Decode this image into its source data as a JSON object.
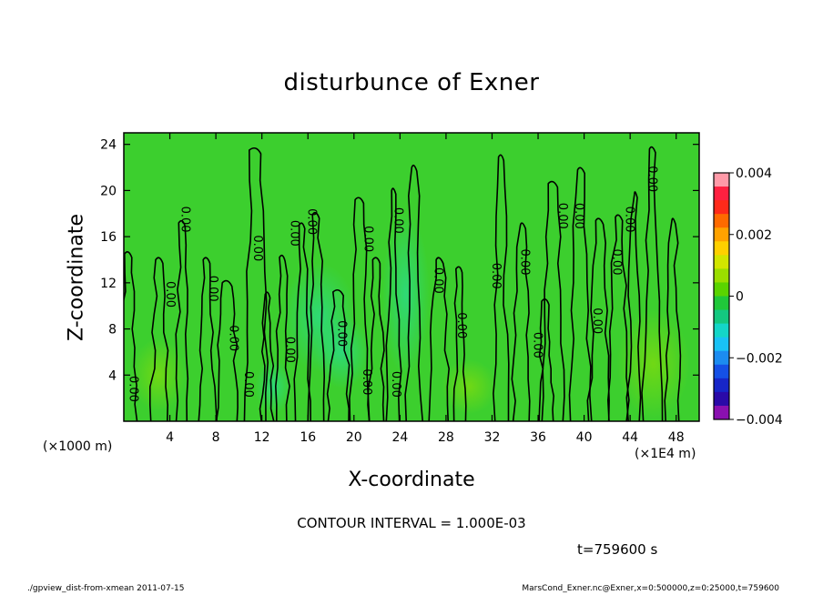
{
  "figure": {
    "title": "disturbunce of Exner",
    "x_unit_left": "(×1000 m)",
    "x_unit_right": "(×1E4 m)",
    "contour_interval": "CONTOUR INTERVAL = 1.000E-03",
    "timestamp": "t=759600 s",
    "footer_left": "./gpview_dist-from-xmean  2011-07-15",
    "footer_right": "MarsCond_Exner.nc@Exner,x=0:500000,z=0:25000,t=759600"
  },
  "chart_data": {
    "type": "heatmap",
    "title": "disturbunce of Exner",
    "xlabel": "X-coordinate",
    "ylabel": "Z-coordinate",
    "xlim": [
      0,
      50
    ],
    "ylim": [
      0,
      25
    ],
    "x_ticks": [
      4,
      8,
      12,
      16,
      20,
      24,
      28,
      32,
      36,
      40,
      44,
      48
    ],
    "y_ticks": [
      4,
      8,
      12,
      16,
      20,
      24
    ],
    "grid": false,
    "background_color": "#3ccf2e",
    "colorbar": {
      "min": -0.004,
      "max": 0.004,
      "tick_labels": [
        "0.004",
        "0.002",
        "0",
        "−0.002",
        "−0.004"
      ],
      "tick_values": [
        0.004,
        0.002,
        0,
        -0.002,
        -0.004
      ],
      "colors": [
        "#ff9aa8",
        "#ff2040",
        "#ff2a1a",
        "#ff6a00",
        "#ffa200",
        "#ffd000",
        "#d2e600",
        "#9bde00",
        "#5ad400",
        "#20c83a",
        "#14c880",
        "#14d6c8",
        "#19c2f5",
        "#1c8cf0",
        "#1550e6",
        "#1726c8",
        "#2a0aa8",
        "#8a10b0"
      ]
    },
    "contour_label": "0.00",
    "contour_label_positions": [
      [
        0.8,
        2.8
      ],
      [
        4,
        11
      ],
      [
        5.3,
        17.5
      ],
      [
        7.7,
        11.5
      ],
      [
        9.5,
        7.2
      ],
      [
        10.8,
        3.2
      ],
      [
        11.6,
        15
      ],
      [
        14.4,
        6.2
      ],
      [
        14.8,
        16.3
      ],
      [
        16.3,
        17.3
      ],
      [
        18.9,
        7.6
      ],
      [
        21.1,
        3.4
      ],
      [
        21.2,
        15.8
      ],
      [
        23.8,
        17.4
      ],
      [
        23.6,
        3.2
      ],
      [
        27.3,
        12.2
      ],
      [
        29.3,
        8.3
      ],
      [
        32.3,
        12.6
      ],
      [
        34.8,
        13.8
      ],
      [
        35.9,
        6.6
      ],
      [
        38.1,
        17.8
      ],
      [
        39.5,
        17.8
      ],
      [
        41.1,
        8.7
      ],
      [
        42.8,
        13.8
      ],
      [
        43.9,
        17.5
      ],
      [
        45.9,
        21
      ]
    ],
    "contour_peaks_top": [
      [
        0.4,
        14.5
      ],
      [
        3.1,
        14
      ],
      [
        5.1,
        17.2
      ],
      [
        7.2,
        14
      ],
      [
        9,
        12
      ],
      [
        11.5,
        23.5
      ],
      [
        12.5,
        11
      ],
      [
        13.8,
        14.2
      ],
      [
        15.5,
        17
      ],
      [
        16.7,
        17.9
      ],
      [
        18.7,
        11.2
      ],
      [
        20.5,
        19.2
      ],
      [
        22,
        14
      ],
      [
        23.4,
        20
      ],
      [
        25.2,
        22
      ],
      [
        27.4,
        14
      ],
      [
        29.2,
        13.2
      ],
      [
        32.8,
        22.9
      ],
      [
        34.6,
        17
      ],
      [
        36.7,
        10.4
      ],
      [
        37.3,
        20.6
      ],
      [
        39.7,
        21.8
      ],
      [
        41.3,
        17.4
      ],
      [
        43,
        17.7
      ],
      [
        44.4,
        19.7
      ],
      [
        45.9,
        23.6
      ],
      [
        47.7,
        17.4
      ]
    ]
  }
}
